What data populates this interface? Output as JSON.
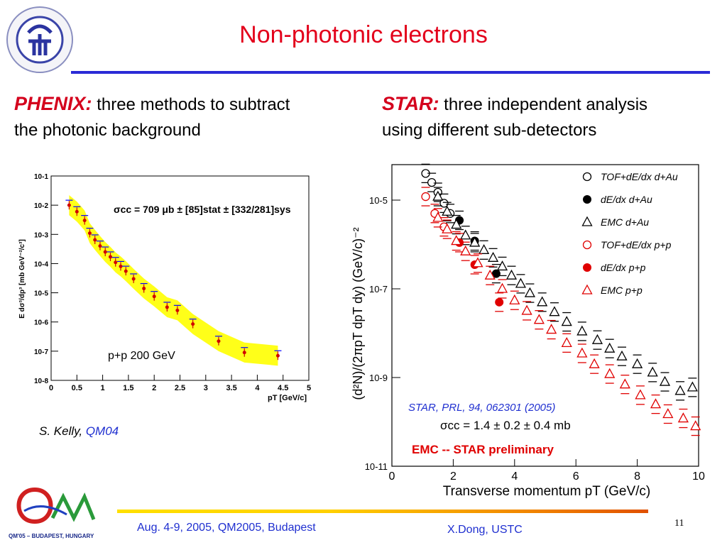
{
  "slide": {
    "title": "Non-photonic electrons",
    "page_number": "11"
  },
  "left_header": {
    "lead": "PHENIX:",
    "line1_rest": " three methods to subtract",
    "line2": "the photonic background"
  },
  "right_header": {
    "lead": "STAR:",
    "line1_rest": " three independent analysis",
    "line2": "using different sub-detectors"
  },
  "citation_left": {
    "author": "S. Kelly,",
    "conf": "QM04"
  },
  "footer": {
    "date_place": "Aug. 4-9, 2005, QM2005, Budapest",
    "author": "X.Dong,  USTC"
  },
  "logo_qm": {
    "text": "QM'05 – BUDAPEST, HUNGARY"
  },
  "colors": {
    "title": "#e3001b",
    "accent_red": "#d4001c",
    "rule": "#2b2bd6",
    "link_blue": "#1f2fd0"
  },
  "chart_data": [
    {
      "type": "scatter",
      "title": "",
      "xlabel": "pT [GeV/c]",
      "ylabel": "E dσ³/dp³ [mb GeV⁻²/c³]",
      "xlim": [
        0,
        5
      ],
      "ylim_log10": [
        -8,
        -1
      ],
      "x_ticks": [
        "0",
        "0.5",
        "1",
        "1.5",
        "2",
        "2.5",
        "3",
        "3.5",
        "4",
        "4.5",
        "5"
      ],
      "y_ticks": [
        "10^-1",
        "10^-2",
        "10^-3",
        "10^-4",
        "10^-5",
        "10^-6",
        "10^-7",
        "10^-8"
      ],
      "annotation": "σcc = 709 μb ± [85]stat ± [332/281]sys",
      "label": "p+p 200 GeV",
      "series": [
        {
          "name": "",
          "points": [
            [
              0.35,
              0.01
            ],
            [
              0.5,
              0.006
            ],
            [
              0.65,
              0.003
            ],
            [
              0.75,
              0.0011
            ],
            [
              0.85,
              0.00065
            ],
            [
              0.95,
              0.0004
            ],
            [
              1.05,
              0.00025
            ],
            [
              1.15,
              0.00017
            ],
            [
              1.25,
              0.00011
            ],
            [
              1.35,
              8e-05
            ],
            [
              1.45,
              5.5e-05
            ],
            [
              1.6,
              3e-05
            ],
            [
              1.8,
              1.4e-05
            ],
            [
              2.0,
              7.5e-06
            ],
            [
              2.25,
              3.2e-06
            ],
            [
              2.45,
              2.5e-06
            ],
            [
              2.75,
              8.5e-07
            ],
            [
              3.25,
              2.2e-07
            ],
            [
              3.75,
              9e-08
            ],
            [
              4.4,
              7e-08
            ]
          ]
        }
      ]
    },
    {
      "type": "scatter",
      "title": "",
      "xlabel": "Transverse momentum pT (GeV/c)",
      "ylabel": "(d²N)/(2πpT dpT dy) (GeV/c)⁻²",
      "xlim": [
        0,
        10
      ],
      "ylim_log10": [
        -11,
        -4.2
      ],
      "x_ticks": [
        "0",
        "2",
        "4",
        "6",
        "8",
        "10"
      ],
      "y_ticks": [
        "10^-5",
        "10^-7",
        "10^-9",
        "10^-11"
      ],
      "legend_position": "top-right",
      "annotations": [
        "STAR, PRL, 94, 062301 (2005)",
        "σcc = 1.4 ± 0.2 ± 0.4 mb",
        "EMC -- STAR preliminary"
      ],
      "series": [
        {
          "name": "TOF+dE/dx d+Au",
          "marker": "open-circle",
          "color": "#000000",
          "points": [
            [
              1.1,
              4e-05
            ],
            [
              1.3,
              2.5e-05
            ],
            [
              1.5,
              1.5e-05
            ],
            [
              1.7,
              8.5e-06
            ],
            [
              1.9,
              5e-06
            ]
          ]
        },
        {
          "name": "dE/dx d+Au",
          "marker": "filled-circle",
          "color": "#000000",
          "points": [
            [
              2.2,
              3.5e-06
            ],
            [
              2.7,
              1.2e-06
            ],
            [
              3.4,
              2.2e-07
            ]
          ]
        },
        {
          "name": "EMC d+Au",
          "marker": "open-triangle",
          "color": "#000000",
          "points": [
            [
              1.5,
              1.2e-05
            ],
            [
              1.8,
              5.5e-06
            ],
            [
              2.1,
              2.8e-06
            ],
            [
              2.4,
              1.6e-06
            ],
            [
              2.7,
              1.1e-06
            ],
            [
              3.0,
              7.5e-07
            ],
            [
              3.3,
              5e-07
            ],
            [
              3.6,
              3.2e-07
            ],
            [
              3.9,
              2e-07
            ],
            [
              4.2,
              1.3e-07
            ],
            [
              4.5,
              8e-08
            ],
            [
              4.9,
              5e-08
            ],
            [
              5.3,
              3e-08
            ],
            [
              5.7,
              1.8e-08
            ],
            [
              6.2,
              1.1e-08
            ],
            [
              6.7,
              7e-09
            ],
            [
              7.1,
              4.5e-09
            ],
            [
              7.5,
              3e-09
            ],
            [
              8.0,
              2e-09
            ],
            [
              8.5,
              1.3e-09
            ],
            [
              8.9,
              8e-10
            ],
            [
              9.4,
              5e-10
            ],
            [
              9.8,
              6e-10
            ]
          ]
        },
        {
          "name": "TOF+dE/dx p+p",
          "marker": "open-circle",
          "color": "#e00000",
          "points": [
            [
              1.1,
              1.2e-05
            ],
            [
              1.4,
              5e-06
            ],
            [
              1.7,
              2.5e-06
            ]
          ]
        },
        {
          "name": "dE/dx p+p",
          "marker": "filled-circle",
          "color": "#e00000",
          "points": [
            [
              2.2,
              1.1e-06
            ],
            [
              2.7,
              3.5e-07
            ],
            [
              3.5,
              5e-08
            ]
          ]
        },
        {
          "name": "EMC p+p",
          "marker": "open-triangle",
          "color": "#e00000",
          "points": [
            [
              1.5,
              4e-06
            ],
            [
              1.8,
              2.2e-06
            ],
            [
              2.1,
              1.2e-06
            ],
            [
              2.4,
              7e-07
            ],
            [
              2.8,
              3.8e-07
            ],
            [
              3.2,
              2e-07
            ],
            [
              3.6,
              1e-07
            ],
            [
              4.0,
              5.5e-08
            ],
            [
              4.4,
              3.2e-08
            ],
            [
              4.8,
              2e-08
            ],
            [
              5.2,
              1.2e-08
            ],
            [
              5.7,
              6e-09
            ],
            [
              6.2,
              3.5e-09
            ],
            [
              6.6,
              2e-09
            ],
            [
              7.1,
              1.2e-09
            ],
            [
              7.6,
              7e-10
            ],
            [
              8.1,
              4e-10
            ],
            [
              8.6,
              2.5e-10
            ],
            [
              9.0,
              1.5e-10
            ],
            [
              9.5,
              1.2e-10
            ],
            [
              9.9,
              8e-11
            ]
          ]
        }
      ]
    }
  ]
}
